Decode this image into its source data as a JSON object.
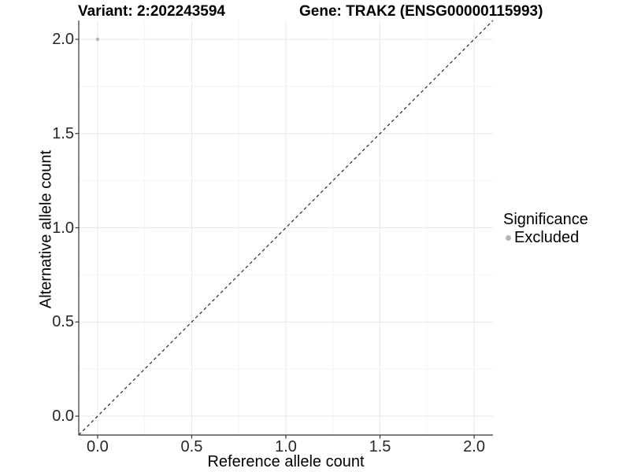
{
  "chart_data": {
    "type": "scatter",
    "titles": {
      "left": "Variant: 2:202243594",
      "right": "Gene: TRAK2 (ENSG00000115993)"
    },
    "xlabel": "Reference allele count",
    "ylabel": "Alternative allele count",
    "xlim": [
      -0.1,
      2.1
    ],
    "ylim": [
      -0.1,
      2.1
    ],
    "xticks": {
      "values": [
        0,
        0.5,
        1,
        1.5,
        2
      ],
      "labels": [
        "0.0",
        "0.5",
        "1.0",
        "1.5",
        "2.0"
      ]
    },
    "yticks": {
      "values": [
        0,
        0.5,
        1,
        1.5,
        2
      ],
      "labels": [
        "0.0",
        "0.5",
        "1.0",
        "1.5",
        "2.0"
      ]
    },
    "minor_x": [
      0.25,
      0.75,
      1.25,
      1.75
    ],
    "minor_y": [
      0.25,
      0.75,
      1.25,
      1.75
    ],
    "grid": "major+minor",
    "series": [
      {
        "name": "Excluded",
        "color": "#b5b5b5",
        "points": [
          {
            "x": 0,
            "y": 2
          }
        ]
      }
    ],
    "reference_line": {
      "kind": "identity",
      "from": [
        -0.1,
        -0.1
      ],
      "to": [
        2.1,
        2.1
      ],
      "style": "dashed",
      "color": "#1a1a1a"
    },
    "legend": {
      "title": "Significance",
      "position": "right",
      "items": [
        {
          "label": "Excluded",
          "color": "#b5b5b5",
          "marker": "circle"
        }
      ]
    },
    "colors": {
      "background": "#ffffff",
      "grid_major": "#e9e9e9",
      "grid_minor": "#f4f4f4",
      "axis_line": "#333333",
      "tick_mark": "#333333",
      "tick_text": "#262626",
      "point": "#b5b5b5"
    }
  }
}
